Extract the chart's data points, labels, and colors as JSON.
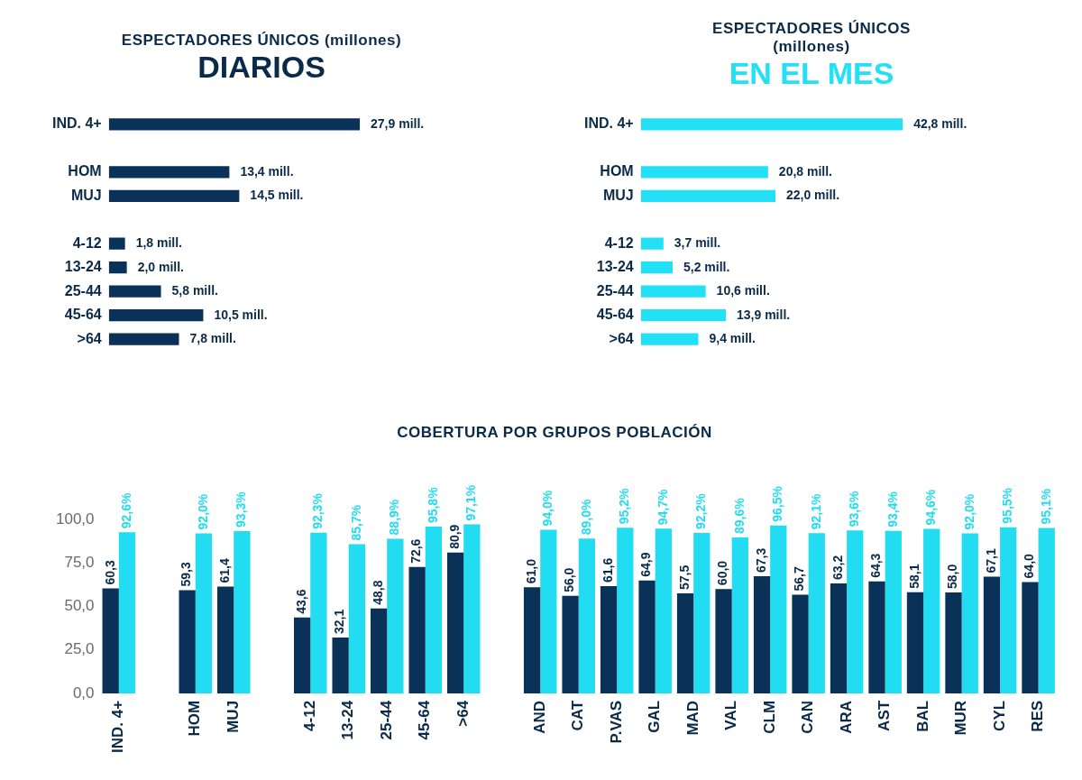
{
  "chart_data": [
    {
      "type": "bar",
      "orientation": "horizontal",
      "title": "ESPECTADORES ÚNICOS (millones)",
      "subtitle": "DIARIOS",
      "tick_labels": "y",
      "categories": [
        "IND. 4+",
        null,
        "HOM",
        "MUJ",
        null,
        "4-12",
        "13-24",
        "25-44",
        "45-64",
        ">64"
      ],
      "series": [
        {
          "color": "#0a3258",
          "values": [
            27.9,
            null,
            13.4,
            14.5,
            null,
            1.8,
            2.0,
            5.8,
            10.5,
            7.8
          ],
          "value_labels": [
            "27,9 mill.",
            null,
            "13,4 mill.",
            "14,5 mill.",
            null,
            "1,8 mill.",
            "2,0 mill.",
            "5,8 mill.",
            "10,5 mill.",
            "7,8 mill."
          ]
        }
      ]
    },
    {
      "type": "bar",
      "orientation": "horizontal",
      "title": "ESPECTADORES ÚNICOS (millones)",
      "subtitle": "EN EL MES",
      "tick_labels": "y",
      "categories": [
        "IND. 4+",
        null,
        "HOM",
        "MUJ",
        null,
        "4-12",
        "13-24",
        "25-44",
        "45-64",
        ">64"
      ],
      "series": [
        {
          "color": "#22e0f5",
          "values": [
            42.8,
            null,
            20.8,
            22.0,
            null,
            3.7,
            5.2,
            10.6,
            13.9,
            9.4
          ],
          "value_labels": [
            "42,8 mill.",
            null,
            "20,8 mill.",
            "22,0 mill.",
            null,
            "3,7 mill.",
            "5,2 mill.",
            "10,6 mill.",
            "13,9 mill.",
            "9,4 mill."
          ]
        }
      ]
    },
    {
      "type": "bar",
      "title": "COBERTURA POR GRUPOS POBLACIÓN",
      "categories": [
        "IND. 4+",
        null,
        "HOM",
        "MUJ",
        null,
        "4-12",
        "13-24",
        "25-44",
        "45-64",
        ">64",
        null,
        "AND",
        "CAT",
        "P.VAS",
        "GAL",
        "MAD",
        "VAL",
        "CLM",
        "CAN",
        "ARA",
        "AST",
        "BAL",
        "MUR",
        "CYL",
        "RES"
      ],
      "ylim": [
        0,
        100
      ],
      "yticks": [
        {
          "value": 0,
          "label": "0,0"
        },
        {
          "value": 25,
          "label": "25,0"
        },
        {
          "value": 50,
          "label": "50,0"
        },
        {
          "value": 75,
          "label": "75,0"
        },
        {
          "value": 100,
          "label": "100,0"
        }
      ],
      "series": [
        {
          "color": "#0a3258",
          "values": [
            60.3,
            null,
            59.3,
            61.4,
            null,
            43.6,
            32.1,
            48.8,
            72.6,
            80.9,
            null,
            61.0,
            56.0,
            61.6,
            64.9,
            57.5,
            60.0,
            67.3,
            56.7,
            63.2,
            64.3,
            58.1,
            58.0,
            67.1,
            64.0
          ],
          "value_labels": [
            "60,3",
            null,
            "59,3",
            "61,4",
            null,
            "43,6",
            "32,1",
            "48,8",
            "72,6",
            "80,9",
            null,
            "61,0",
            "56,0",
            "61,6",
            "64,9",
            "57,5",
            "60,0",
            "67,3",
            "56,7",
            "63,2",
            "64,3",
            "58,1",
            "58,0",
            "67,1",
            "64,0"
          ]
        },
        {
          "color": "#22dcf2",
          "values": [
            92.6,
            null,
            92.0,
            93.3,
            null,
            92.3,
            85.7,
            88.9,
            95.8,
            97.1,
            null,
            94.0,
            89.0,
            95.2,
            94.7,
            92.2,
            89.6,
            96.5,
            92.1,
            93.6,
            93.4,
            94.6,
            92.0,
            95.5,
            95.1
          ],
          "value_labels": [
            "92,6%",
            null,
            "92,0%",
            "93,3%",
            null,
            "92,3%",
            "85,7%",
            "88,9%",
            "95,8%",
            "97,1%",
            null,
            "94,0%",
            "89,0%",
            "95,2%",
            "94,7%",
            "92,2%",
            "89,6%",
            "96,5%",
            "92,1%",
            "93,6%",
            "93,4%",
            "94,6%",
            "92,0%",
            "95,5%",
            "95,1%"
          ]
        }
      ]
    }
  ]
}
